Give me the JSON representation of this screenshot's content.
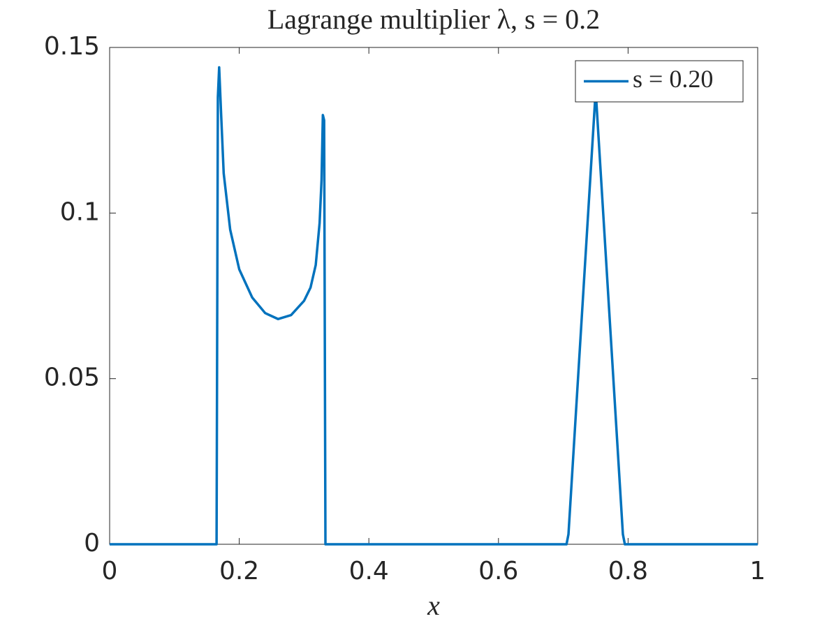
{
  "chart_data": {
    "type": "line",
    "title": "Lagrange multiplier λ, s = 0.2",
    "x_label": "x",
    "x": [
      0,
      0.165,
      0.167,
      0.169,
      0.172,
      0.176,
      0.186,
      0.2,
      0.22,
      0.24,
      0.26,
      0.28,
      0.3,
      0.31,
      0.318,
      0.324,
      0.327,
      0.329,
      0.331,
      0.333,
      0.705,
      0.708,
      0.75,
      0.792,
      0.795,
      1
    ],
    "series": [
      {
        "name": "s = 0.20",
        "color": "#0072bd",
        "values": [
          0,
          0,
          0.135,
          0.144,
          0.13,
          0.112,
          0.095,
          0.083,
          0.0745,
          0.0698,
          0.068,
          0.0692,
          0.0735,
          0.0775,
          0.0843,
          0.097,
          0.11,
          0.1296,
          0.128,
          0,
          0,
          0.003,
          0.137,
          0.003,
          0,
          0
        ]
      }
    ],
    "xlim": [
      0,
      1
    ],
    "xticks": [
      0,
      0.2,
      0.4,
      0.6,
      0.8,
      1
    ],
    "ylim": [
      0,
      0.15
    ],
    "yticks": [
      0,
      0.05,
      0.1,
      0.15
    ],
    "legend": "upper right"
  }
}
